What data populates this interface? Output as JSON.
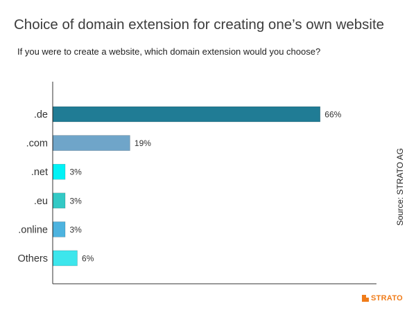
{
  "chart_data": {
    "type": "bar",
    "orientation": "horizontal",
    "title": "Choice of domain extension for creating one’s own website",
    "subtitle": "If you were to create a website, which domain extension would you choose?",
    "categories": [
      ".de",
      ".com",
      ".net",
      ".eu",
      ".online",
      "Others"
    ],
    "values": [
      66,
      19,
      3,
      3,
      3,
      6
    ],
    "value_labels": [
      "66%",
      "19%",
      "3%",
      "3%",
      "3%",
      "6%"
    ],
    "colors": [
      "#207c95",
      "#6fa5c9",
      "#00f2f6",
      "#33c9c5",
      "#4db3df",
      "#3de6ec"
    ],
    "xlim": [
      0,
      80
    ],
    "grid": false,
    "legend": "none"
  },
  "source": "Source: STRATO  AG",
  "brand": {
    "name": "STRATO",
    "icon": "strato-logo-icon",
    "color": "#f07c1a"
  }
}
